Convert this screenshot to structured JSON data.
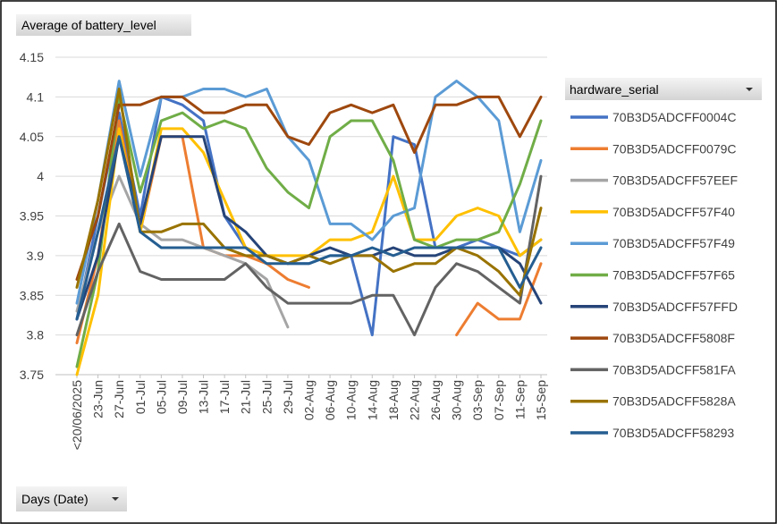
{
  "chart_data": {
    "type": "line",
    "value_field_button": "Average of battery_level",
    "axis_field_button": "Days (Date)",
    "legend_title": "hardware_serial",
    "categories": [
      "<20/06/2025",
      "23-Jun",
      "27-Jun",
      "01-Jul",
      "05-Jul",
      "09-Jul",
      "13-Jul",
      "17-Jul",
      "21-Jul",
      "25-Jul",
      "29-Jul",
      "02-Aug",
      "06-Aug",
      "10-Aug",
      "14-Aug",
      "18-Aug",
      "22-Aug",
      "26-Aug",
      "30-Aug",
      "03-Sep",
      "07-Sep",
      "11-Sep",
      "15-Sep"
    ],
    "ylim": [
      3.75,
      4.15
    ],
    "yticks": [
      3.75,
      3.8,
      3.85,
      3.9,
      3.95,
      4,
      4.05,
      4.1,
      4.15
    ],
    "grid": true,
    "legend": "right",
    "series": [
      {
        "name": "70B3D5ADCFF0004C",
        "color": "#4472c4",
        "values": [
          3.82,
          3.95,
          4.08,
          3.95,
          4.1,
          4.09,
          4.07,
          3.95,
          3.91,
          3.9,
          3.89,
          3.89,
          3.9,
          3.9,
          3.8,
          4.05,
          4.04,
          3.91,
          3.91,
          3.92,
          3.91,
          3.9,
          3.92
        ]
      },
      {
        "name": "70B3D5ADCFF0079C",
        "color": "#ed7d31",
        "values": [
          3.79,
          3.9,
          4.07,
          3.93,
          4.05,
          4.05,
          3.91,
          3.9,
          3.9,
          3.89,
          3.87,
          3.86,
          null,
          null,
          null,
          null,
          null,
          null,
          3.8,
          3.84,
          3.82,
          3.82,
          3.89
        ]
      },
      {
        "name": "70B3D5ADCFF57EEF",
        "color": "#a5a5a5",
        "values": [
          3.83,
          3.93,
          4.0,
          3.94,
          3.92,
          3.92,
          3.91,
          3.9,
          3.89,
          3.87,
          3.81,
          null,
          null,
          null,
          null,
          null,
          null,
          null,
          null,
          null,
          null,
          null,
          null
        ]
      },
      {
        "name": "70B3D5ADCFF57F40",
        "color": "#ffc000",
        "values": [
          3.75,
          3.85,
          4.06,
          3.93,
          4.06,
          4.06,
          4.03,
          3.97,
          3.91,
          3.9,
          3.9,
          3.9,
          3.92,
          3.92,
          3.93,
          4.0,
          3.92,
          3.92,
          3.95,
          3.96,
          3.95,
          3.9,
          3.92
        ]
      },
      {
        "name": "70B3D5ADCFF57F49",
        "color": "#5b9bd5",
        "values": [
          3.84,
          3.97,
          4.12,
          4.0,
          4.1,
          4.1,
          4.11,
          4.11,
          4.1,
          4.11,
          4.05,
          4.02,
          3.94,
          3.94,
          3.92,
          3.95,
          3.96,
          4.1,
          4.12,
          4.1,
          4.07,
          3.93,
          4.02
        ]
      },
      {
        "name": "70B3D5ADCFF57F65",
        "color": "#70ad47",
        "values": [
          3.76,
          3.88,
          4.1,
          3.98,
          4.07,
          4.08,
          4.06,
          4.07,
          4.06,
          4.01,
          3.98,
          3.96,
          4.05,
          4.07,
          4.07,
          4.02,
          3.92,
          3.91,
          3.92,
          3.92,
          3.93,
          3.99,
          4.07
        ]
      },
      {
        "name": "70B3D5ADCFF57FFD",
        "color": "#264478",
        "values": [
          3.82,
          3.9,
          4.05,
          3.94,
          4.05,
          4.05,
          4.05,
          3.95,
          3.93,
          3.9,
          3.89,
          3.9,
          3.91,
          3.9,
          3.9,
          3.91,
          3.9,
          3.9,
          3.91,
          3.91,
          3.91,
          3.89,
          3.84
        ]
      },
      {
        "name": "70B3D5ADCFF5808F",
        "color": "#9e480e",
        "values": [
          3.87,
          3.95,
          4.09,
          4.09,
          4.1,
          4.1,
          4.08,
          4.08,
          4.09,
          4.09,
          4.05,
          4.04,
          4.08,
          4.09,
          4.08,
          4.09,
          4.03,
          4.09,
          4.09,
          4.1,
          4.1,
          4.05,
          4.1
        ]
      },
      {
        "name": "70B3D5ADCFF581FA",
        "color": "#636363",
        "values": [
          3.8,
          3.88,
          3.94,
          3.88,
          3.87,
          3.87,
          3.87,
          3.87,
          3.89,
          3.86,
          3.84,
          3.84,
          3.84,
          3.84,
          3.85,
          3.85,
          3.8,
          3.86,
          3.89,
          3.88,
          3.86,
          3.84,
          4.0
        ]
      },
      {
        "name": "70B3D5ADCFF5828A",
        "color": "#997300",
        "values": [
          3.86,
          3.97,
          4.11,
          3.93,
          3.93,
          3.94,
          3.94,
          3.91,
          3.9,
          3.9,
          3.89,
          3.9,
          3.89,
          3.9,
          3.9,
          3.88,
          3.89,
          3.89,
          3.91,
          3.9,
          3.88,
          3.85,
          3.96
        ]
      },
      {
        "name": "70B3D5ADCFF58293",
        "color": "#255e91",
        "values": [
          3.82,
          3.93,
          4.05,
          3.93,
          3.91,
          3.91,
          3.91,
          3.91,
          3.91,
          3.89,
          3.89,
          3.89,
          3.9,
          3.9,
          3.91,
          3.9,
          3.91,
          3.91,
          3.91,
          3.91,
          3.91,
          3.86,
          3.91
        ]
      }
    ]
  }
}
